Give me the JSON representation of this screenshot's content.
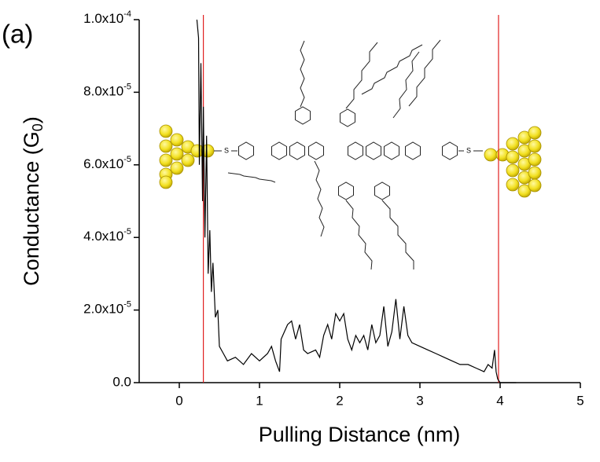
{
  "chart_data": {
    "type": "line",
    "panel_label": "(a)",
    "xlabel": "Pulling Distance (nm)",
    "ylabel": "Conductance (G0)",
    "annotations": [
      "S",
      "S"
    ],
    "xlim": [
      -0.5,
      5
    ],
    "xticks": [
      0,
      1,
      2,
      3,
      4,
      5
    ],
    "ylim": [
      0,
      0.0001
    ],
    "yticks": [
      {
        "value": 0,
        "label": "0.0"
      },
      {
        "value": 2e-05,
        "label": "2.0x10-5"
      },
      {
        "value": 4e-05,
        "label": "4.0x10-5"
      },
      {
        "value": 6e-05,
        "label": "6.0x10-5"
      },
      {
        "value": 8e-05,
        "label": "8.0x10-5"
      },
      {
        "value": 0.0001,
        "label": "1.0x10-4"
      }
    ],
    "vlines": [
      0.3,
      3.98
    ],
    "vline_color": "#e02020",
    "series": [
      {
        "color": "#000000",
        "x": [
          0.22,
          0.24,
          0.25,
          0.27,
          0.29,
          0.3,
          0.32,
          0.34,
          0.36,
          0.38,
          0.4,
          0.42,
          0.45,
          0.48,
          0.5,
          0.55,
          0.6,
          0.7,
          0.8,
          0.9,
          1.0,
          1.1,
          1.15,
          1.2,
          1.25,
          1.27,
          1.35,
          1.4,
          1.45,
          1.5,
          1.55,
          1.6,
          1.7,
          1.75,
          1.8,
          1.85,
          1.9,
          1.95,
          2.0,
          2.05,
          2.1,
          2.15,
          2.2,
          2.25,
          2.3,
          2.35,
          2.4,
          2.45,
          2.5,
          2.55,
          2.6,
          2.65,
          2.7,
          2.75,
          2.8,
          2.85,
          2.9,
          3.0,
          3.1,
          3.2,
          3.3,
          3.4,
          3.5,
          3.6,
          3.7,
          3.8,
          3.85,
          3.9,
          3.93,
          3.95,
          3.97,
          4.0,
          4.2
        ],
        "values": [
          0.0001,
          9.5e-05,
          6e-05,
          8.8e-05,
          5e-05,
          7.6e-05,
          4e-05,
          6.8e-05,
          3e-05,
          4.2e-05,
          2.5e-05,
          3.3e-05,
          1.8e-05,
          2e-05,
          1e-05,
          8e-06,
          6e-06,
          7e-06,
          5e-06,
          8e-06,
          6e-06,
          8e-06,
          1e-05,
          6e-06,
          3e-06,
          1.2e-05,
          1.6e-05,
          1.7e-05,
          1.2e-05,
          1.6e-05,
          9e-06,
          8e-06,
          9e-06,
          7e-06,
          1.3e-05,
          1.6e-05,
          1.2e-05,
          1.9e-05,
          1.7e-05,
          1.9e-05,
          1.2e-05,
          9e-06,
          1.3e-05,
          1.1e-05,
          1.3e-05,
          9e-06,
          1.6e-05,
          1.1e-05,
          1.3e-05,
          2.1e-05,
          1e-05,
          1.4e-05,
          2.3e-05,
          1.2e-05,
          2.1e-05,
          1.3e-05,
          1.1e-05,
          1e-05,
          9e-06,
          8e-06,
          7e-06,
          6e-06,
          5e-06,
          5e-06,
          4e-06,
          3e-06,
          5e-06,
          4e-06,
          9e-06,
          3e-06,
          1e-06,
          0,
          0
        ]
      }
    ]
  }
}
